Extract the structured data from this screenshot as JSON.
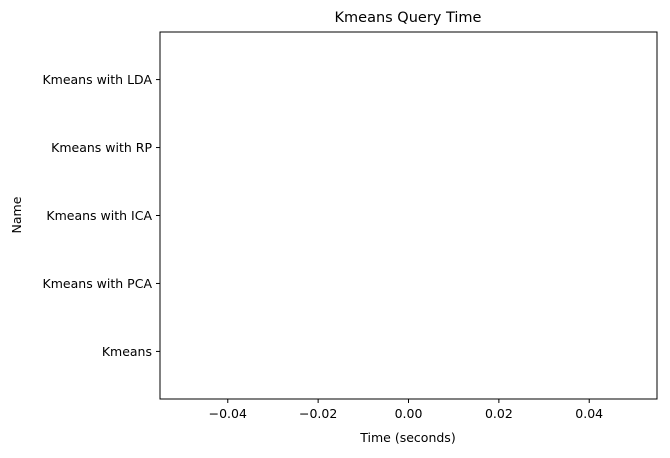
{
  "chart_data": {
    "type": "bar",
    "orientation": "horizontal",
    "title": "Kmeans Query Time",
    "xlabel": "Time (seconds)",
    "ylabel": "Name",
    "categories": [
      "Kmeans",
      "Kmeans with PCA",
      "Kmeans with ICA",
      "Kmeans with RP",
      "Kmeans with LDA"
    ],
    "values": [
      0,
      0,
      0,
      0,
      0
    ],
    "xlim": [
      -0.055,
      0.055
    ],
    "xticks": [
      -0.04,
      -0.02,
      0.0,
      0.02,
      0.04
    ],
    "xtick_labels": [
      "−0.04",
      "−0.02",
      "0.00",
      "0.02",
      "0.04"
    ],
    "grid": false,
    "colors": {
      "axis": "#000000",
      "background": "#ffffff"
    }
  }
}
